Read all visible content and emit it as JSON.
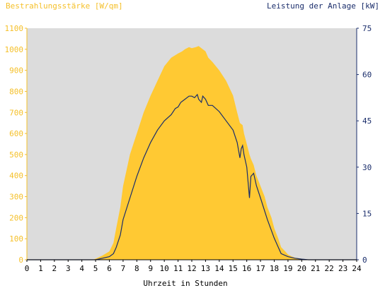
{
  "chart_data": {
    "type": "area",
    "title": "",
    "left_axis_title": "Bestrahlungsstärke [W/qm]",
    "right_axis_title": "Leistung der Anlage [kW]",
    "xlabel": "Uhrzeit in Stunden",
    "x_ticks": [
      "0",
      "1",
      "2",
      "3",
      "4",
      "5",
      "6",
      "7",
      "8",
      "9",
      "10",
      "11",
      "12",
      "13",
      "14",
      "15",
      "16",
      "17",
      "18",
      "19",
      "20",
      "21",
      "22",
      "23",
      "24"
    ],
    "xlim": [
      0,
      24
    ],
    "ylim_left": [
      0,
      1100
    ],
    "ylim_right": [
      0,
      75
    ],
    "y_ticks_left": [
      "0",
      "100",
      "200",
      "300",
      "400",
      "500",
      "600",
      "700",
      "800",
      "900",
      "1000",
      "1100"
    ],
    "y_ticks_right": [
      "0",
      "15",
      "30",
      "45",
      "60",
      "75"
    ],
    "grid": false,
    "colors": {
      "irradiance": "#ffc933",
      "power": "#1a2d6b",
      "plot_background": "#dcdcdc",
      "left_axis": "#f5c02a",
      "right_axis": "#1a2d6b"
    },
    "series": [
      {
        "axis": "left",
        "style": "area",
        "color": "#ffc933",
        "x": [
          0,
          4.8,
          5.0,
          5.5,
          6.0,
          6.3,
          6.5,
          6.8,
          7.0,
          7.5,
          8.0,
          8.5,
          9.0,
          9.5,
          10.0,
          10.5,
          11.0,
          11.3,
          11.5,
          11.8,
          12.0,
          12.3,
          12.5,
          12.8,
          13.0,
          13.2,
          13.5,
          14.0,
          14.5,
          15.0,
          15.3,
          15.5,
          15.7,
          15.8,
          16.0,
          16.2,
          16.3,
          16.5,
          16.7,
          17.0,
          17.3,
          17.5,
          17.8,
          18.0,
          18.3,
          18.5,
          18.8,
          19.0,
          19.3,
          19.5,
          20.0,
          20.2,
          20.5,
          24
        ],
        "values": [
          0,
          0,
          5,
          20,
          40,
          80,
          150,
          250,
          350,
          500,
          600,
          700,
          780,
          850,
          920,
          960,
          980,
          990,
          1000,
          1010,
          1005,
          1010,
          1015,
          1000,
          990,
          960,
          940,
          900,
          850,
          780,
          700,
          650,
          640,
          600,
          550,
          500,
          480,
          450,
          400,
          350,
          300,
          250,
          200,
          150,
          100,
          60,
          40,
          25,
          15,
          10,
          5,
          2,
          0,
          0
        ]
      },
      {
        "axis": "right",
        "style": "line",
        "color": "#1a2d6b",
        "x": [
          0,
          5.0,
          5.5,
          6.0,
          6.3,
          6.5,
          6.8,
          7.0,
          7.5,
          8.0,
          8.5,
          9.0,
          9.5,
          10.0,
          10.5,
          10.8,
          11.0,
          11.2,
          11.5,
          11.8,
          12.0,
          12.2,
          12.4,
          12.5,
          12.7,
          12.8,
          13.0,
          13.2,
          13.5,
          14.0,
          14.5,
          15.0,
          15.3,
          15.5,
          15.6,
          15.7,
          15.8,
          16.0,
          16.1,
          16.2,
          16.3,
          16.5,
          16.7,
          17.0,
          17.5,
          18.0,
          18.3,
          18.5,
          19.0,
          19.5,
          20.0,
          20.5,
          24
        ],
        "values": [
          0,
          0,
          0.5,
          1,
          2,
          4,
          8,
          13,
          20,
          27,
          33,
          38,
          42,
          45,
          47,
          49,
          49.5,
          51,
          52,
          53,
          53,
          52.5,
          53.5,
          52,
          51,
          53,
          52,
          50,
          50,
          48,
          45,
          42,
          38,
          33,
          36,
          37,
          34,
          30,
          25,
          20,
          27,
          28,
          24,
          20,
          13,
          7,
          4,
          2,
          1,
          0.5,
          0.2,
          0,
          0
        ]
      }
    ]
  }
}
